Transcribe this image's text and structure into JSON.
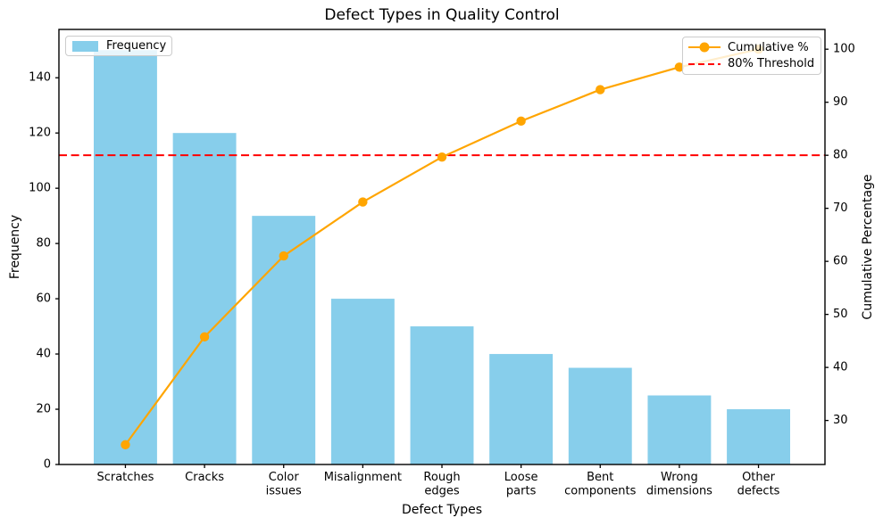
{
  "chart_data": {
    "type": "bar",
    "subtype": "pareto",
    "title": "Defect Types in Quality Control",
    "xlabel": "Defect Types",
    "ylabel": "Frequency",
    "ylabel2": "Cumulative Percentage",
    "categories": [
      "Scratches",
      "Cracks",
      "Color\nissues",
      "Misalignment",
      "Rough\nedges",
      "Loose\nparts",
      "Bent\ncomponents",
      "Wrong\ndimensions",
      "Other\ndefects"
    ],
    "series": [
      {
        "name": "Frequency",
        "type": "bar",
        "axis": "left",
        "values": [
          150,
          120,
          90,
          60,
          50,
          40,
          35,
          25,
          20
        ]
      },
      {
        "name": "Cumulative %",
        "type": "line",
        "axis": "right",
        "values": [
          25.42,
          45.76,
          61.02,
          71.19,
          79.66,
          86.44,
          92.37,
          96.61,
          100.0
        ]
      }
    ],
    "threshold": {
      "label": "80% Threshold",
      "value": 80,
      "style": "dashed"
    },
    "axes": {
      "left": {
        "ticks": [
          0,
          20,
          40,
          60,
          80,
          100,
          120,
          140
        ],
        "lim": [
          0,
          157.5
        ]
      },
      "right": {
        "ticks": [
          30,
          40,
          50,
          60,
          70,
          80,
          90,
          100
        ],
        "lim": [
          21.7,
          103.73
        ]
      },
      "x": {
        "lim": [
          -0.84,
          8.84
        ],
        "bar_width": 0.8
      }
    },
    "grid": false,
    "legends": {
      "left": {
        "position": "upper left",
        "items": [
          {
            "label": "Frequency",
            "type": "patch"
          }
        ]
      },
      "right": {
        "position": "upper right",
        "items": [
          {
            "label": "Cumulative %",
            "type": "line-marker"
          },
          {
            "label": "80% Threshold",
            "type": "dashed-line"
          }
        ]
      }
    },
    "colors": {
      "bar": "#87CEEB",
      "line": "#FFA500",
      "threshold": "#FF0000",
      "text": "#000000",
      "spine": "#000000",
      "legend_border": "#cccccc"
    }
  }
}
